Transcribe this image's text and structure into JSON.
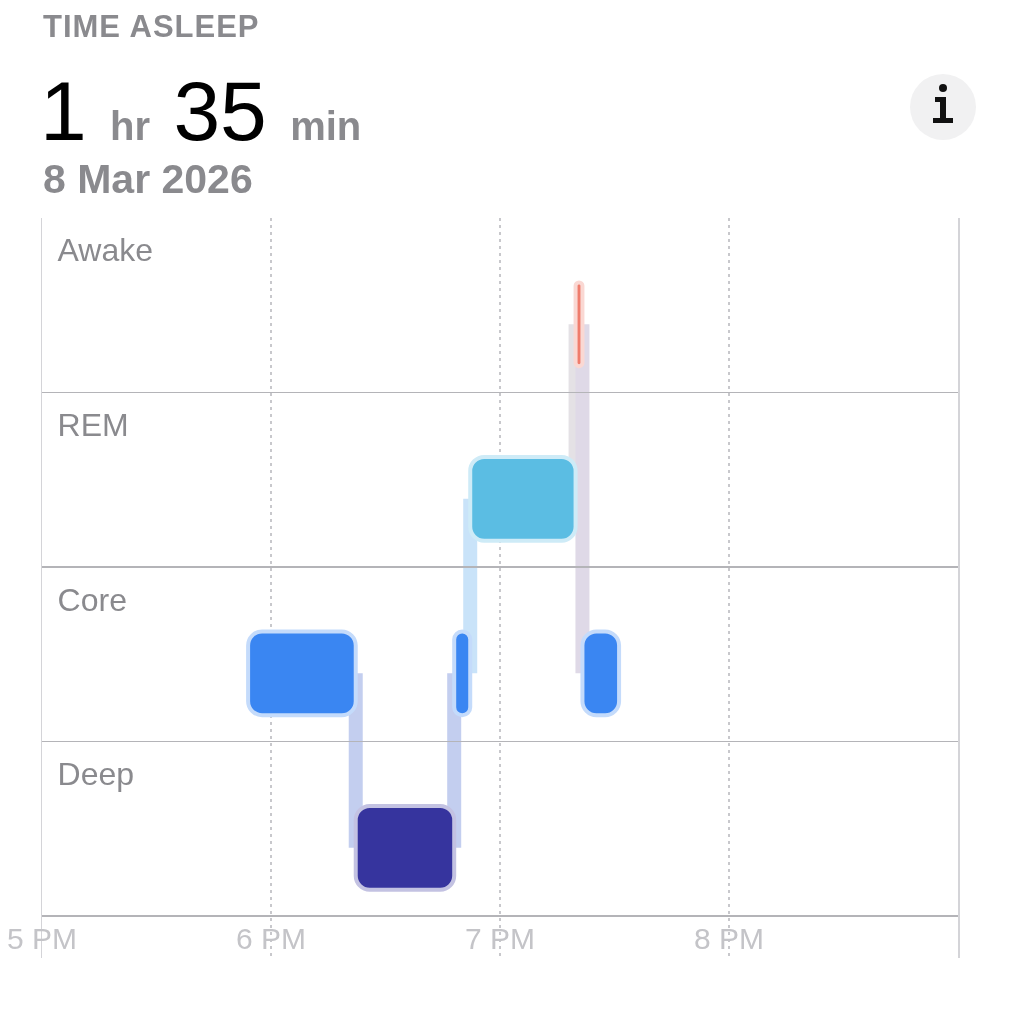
{
  "chart_data": {
    "type": "bar",
    "orientation": "horizontal",
    "title": "TIME ASLEEP",
    "subtitle": "1 hr 35 min",
    "annotations": [
      "8 Mar 2026"
    ],
    "categories": [
      "Awake",
      "REM",
      "Core",
      "Deep"
    ],
    "series": [
      {
        "color": "#3a86f2",
        "values": [
          null,
          null,
          0.47,
          null
        ],
        "base": [
          null,
          null,
          5.9,
          null
        ]
      },
      {
        "color": "#36349e",
        "values": [
          null,
          null,
          null,
          0.43
        ],
        "base": [
          null,
          null,
          null,
          6.37
        ]
      },
      {
        "color": "#3a86f2",
        "values": [
          null,
          null,
          0.07,
          null
        ],
        "base": [
          null,
          null,
          6.8,
          null
        ]
      },
      {
        "color": "#5bbde3",
        "values": [
          null,
          0.46,
          null,
          null
        ],
        "base": [
          null,
          6.87,
          null,
          null
        ]
      },
      {
        "color": "#ef7c6c",
        "values": [
          0.03,
          null,
          null,
          null
        ],
        "base": [
          7.33,
          null,
          null,
          null
        ]
      },
      {
        "color": "#3a86f2",
        "values": [
          null,
          null,
          0.16,
          null
        ],
        "base": [
          null,
          null,
          7.36,
          null
        ]
      }
    ],
    "xlim": [
      5,
      9
    ],
    "xticks": [
      {
        "value": 5,
        "label": "5 PM"
      },
      {
        "value": 6,
        "label": "6 PM"
      },
      {
        "value": 7,
        "label": "7 PM"
      },
      {
        "value": 8,
        "label": "8 PM"
      }
    ],
    "grid": true
  }
}
